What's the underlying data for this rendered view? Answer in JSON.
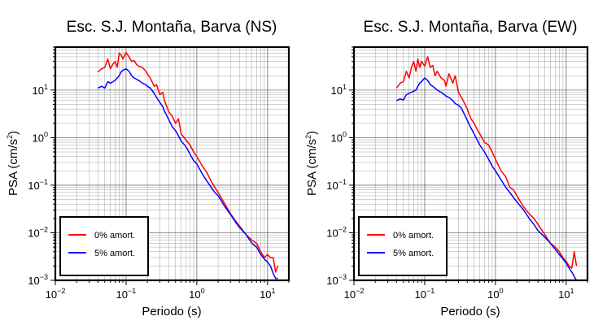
{
  "colors": {
    "series_0": "#ff0000",
    "series_5": "#0000ff",
    "grid": "#555555",
    "frame": "#000000"
  },
  "chart_data": [
    {
      "type": "line",
      "title": "Esc. S.J. Montaña, Barva (NS)",
      "xlabel": "Periodo (s)",
      "ylabel_main": "PSA (cm/s",
      "ylabel_sup": "2",
      "ylabel_tail": ")",
      "x_scale": "log",
      "y_scale": "log",
      "xlim": [
        0.01,
        20
      ],
      "ylim": [
        0.001,
        80
      ],
      "grid": true,
      "legend_position": "bottom-left",
      "x_ticks": [
        {
          "base": "10",
          "exp": "−2",
          "value": 0.01
        },
        {
          "base": "10",
          "exp": "−1",
          "value": 0.1
        },
        {
          "base": "10",
          "exp": "0",
          "value": 1
        },
        {
          "base": "10",
          "exp": "1",
          "value": 10
        }
      ],
      "y_ticks": [
        {
          "base": "10",
          "exp": "−3",
          "value": 0.001
        },
        {
          "base": "10",
          "exp": "−2",
          "value": 0.01
        },
        {
          "base": "10",
          "exp": "−1",
          "value": 0.1
        },
        {
          "base": "10",
          "exp": "0",
          "value": 1
        },
        {
          "base": "10",
          "exp": "1",
          "value": 10
        }
      ],
      "series": [
        {
          "name": "0% amort.",
          "color": "#ff0000",
          "x": [
            0.04,
            0.045,
            0.05,
            0.055,
            0.06,
            0.065,
            0.07,
            0.075,
            0.08,
            0.085,
            0.09,
            0.1,
            0.11,
            0.12,
            0.13,
            0.14,
            0.15,
            0.17,
            0.19,
            0.2,
            0.22,
            0.25,
            0.27,
            0.3,
            0.33,
            0.35,
            0.4,
            0.45,
            0.5,
            0.55,
            0.6,
            0.7,
            0.8,
            0.9,
            1.0,
            1.2,
            1.4,
            1.6,
            1.8,
            2.0,
            2.5,
            3.0,
            3.5,
            4.0,
            5.0,
            6.0,
            7.0,
            8.0,
            9.0,
            10.0,
            11.0,
            12.0,
            13.0,
            14.0
          ],
          "y": [
            24,
            28,
            30,
            45,
            28,
            35,
            40,
            30,
            60,
            55,
            45,
            62,
            50,
            40,
            42,
            35,
            32,
            30,
            25,
            22,
            18,
            12,
            13,
            8,
            9,
            6,
            3.5,
            2.8,
            2.0,
            2.5,
            1.2,
            0.9,
            0.7,
            0.5,
            0.4,
            0.25,
            0.18,
            0.12,
            0.09,
            0.07,
            0.04,
            0.025,
            0.018,
            0.014,
            0.009,
            0.007,
            0.006,
            0.004,
            0.003,
            0.0035,
            0.003,
            0.003,
            0.0015,
            0.002
          ]
        },
        {
          "name": "5% amort.",
          "color": "#0000ff",
          "x": [
            0.04,
            0.045,
            0.05,
            0.055,
            0.06,
            0.065,
            0.07,
            0.075,
            0.08,
            0.085,
            0.09,
            0.1,
            0.11,
            0.12,
            0.13,
            0.14,
            0.15,
            0.17,
            0.19,
            0.2,
            0.22,
            0.25,
            0.27,
            0.3,
            0.33,
            0.35,
            0.4,
            0.45,
            0.5,
            0.55,
            0.6,
            0.7,
            0.8,
            0.9,
            1.0,
            1.2,
            1.4,
            1.6,
            1.8,
            2.0,
            2.5,
            3.0,
            3.5,
            4.0,
            5.0,
            6.0,
            7.0,
            8.0,
            9.0,
            10.0,
            11.0,
            12.0,
            13.0,
            14.0
          ],
          "y": [
            11,
            12,
            11,
            15,
            14,
            15,
            16,
            18,
            20,
            24,
            26,
            28,
            25,
            20,
            18,
            17,
            16,
            14,
            13,
            12,
            11,
            8.5,
            7,
            5.5,
            4.5,
            3.6,
            2.4,
            1.7,
            1.4,
            1.1,
            0.85,
            0.65,
            0.45,
            0.33,
            0.28,
            0.17,
            0.12,
            0.09,
            0.07,
            0.06,
            0.035,
            0.024,
            0.017,
            0.013,
            0.009,
            0.006,
            0.005,
            0.0035,
            0.0028,
            0.0024,
            0.002,
            0.0014,
            0.0011,
            0.0011
          ]
        }
      ]
    },
    {
      "type": "line",
      "title": "Esc. S.J. Montaña, Barva (EW)",
      "xlabel": "Periodo (s)",
      "ylabel_main": "PSA (cm/s",
      "ylabel_sup": "2",
      "ylabel_tail": ")",
      "x_scale": "log",
      "y_scale": "log",
      "xlim": [
        0.01,
        20
      ],
      "ylim": [
        0.001,
        80
      ],
      "grid": true,
      "legend_position": "bottom-left",
      "x_ticks": [
        {
          "base": "10",
          "exp": "−2",
          "value": 0.01
        },
        {
          "base": "10",
          "exp": "−1",
          "value": 0.1
        },
        {
          "base": "10",
          "exp": "0",
          "value": 1
        },
        {
          "base": "10",
          "exp": "1",
          "value": 10
        }
      ],
      "y_ticks": [
        {
          "base": "10",
          "exp": "−3",
          "value": 0.001
        },
        {
          "base": "10",
          "exp": "−2",
          "value": 0.01
        },
        {
          "base": "10",
          "exp": "−1",
          "value": 0.1
        },
        {
          "base": "10",
          "exp": "0",
          "value": 1
        },
        {
          "base": "10",
          "exp": "1",
          "value": 10
        }
      ],
      "series": [
        {
          "name": "0% amort.",
          "color": "#ff0000",
          "x": [
            0.04,
            0.045,
            0.05,
            0.055,
            0.06,
            0.065,
            0.07,
            0.075,
            0.08,
            0.085,
            0.09,
            0.1,
            0.11,
            0.12,
            0.13,
            0.14,
            0.15,
            0.17,
            0.19,
            0.2,
            0.22,
            0.25,
            0.27,
            0.3,
            0.33,
            0.35,
            0.4,
            0.45,
            0.5,
            0.55,
            0.6,
            0.7,
            0.8,
            0.9,
            1.0,
            1.2,
            1.4,
            1.6,
            1.8,
            2.0,
            2.5,
            3.0,
            3.5,
            4.0,
            5.0,
            6.0,
            7.0,
            8.0,
            9.0,
            10.0,
            11.0,
            12.0,
            13.0,
            14.0
          ],
          "y": [
            11,
            14,
            15,
            25,
            18,
            30,
            40,
            25,
            45,
            30,
            40,
            32,
            50,
            30,
            33,
            20,
            25,
            18,
            16,
            12,
            22,
            14,
            20,
            9,
            7,
            6,
            4,
            2.5,
            2.0,
            1.5,
            1.2,
            0.8,
            0.7,
            0.5,
            0.35,
            0.2,
            0.15,
            0.09,
            0.08,
            0.06,
            0.035,
            0.025,
            0.02,
            0.015,
            0.009,
            0.006,
            0.005,
            0.004,
            0.003,
            0.0025,
            0.002,
            0.0018,
            0.004,
            0.002
          ]
        },
        {
          "name": "5% amort.",
          "color": "#0000ff",
          "x": [
            0.04,
            0.045,
            0.05,
            0.055,
            0.06,
            0.065,
            0.07,
            0.075,
            0.08,
            0.085,
            0.09,
            0.1,
            0.11,
            0.12,
            0.13,
            0.14,
            0.15,
            0.17,
            0.19,
            0.2,
            0.22,
            0.25,
            0.27,
            0.3,
            0.33,
            0.35,
            0.4,
            0.45,
            0.5,
            0.55,
            0.6,
            0.7,
            0.8,
            0.9,
            1.0,
            1.2,
            1.4,
            1.6,
            1.8,
            2.0,
            2.5,
            3.0,
            3.5,
            4.0,
            5.0,
            6.0,
            7.0,
            8.0,
            9.0,
            10.0,
            11.0,
            12.0,
            13.0,
            14.0
          ],
          "y": [
            6,
            6.5,
            6.2,
            8,
            8.5,
            9,
            9.5,
            10,
            12,
            14,
            15,
            18,
            16,
            13,
            12,
            11,
            10,
            9,
            8,
            7.5,
            7,
            6,
            5.2,
            4.8,
            4.2,
            3.5,
            2.3,
            1.6,
            1.2,
            0.9,
            0.7,
            0.5,
            0.35,
            0.25,
            0.2,
            0.13,
            0.09,
            0.07,
            0.055,
            0.045,
            0.03,
            0.02,
            0.015,
            0.011,
            0.008,
            0.006,
            0.0045,
            0.0035,
            0.0028,
            0.0023,
            0.0018,
            0.0015,
            0.0012,
            0.001
          ]
        }
      ]
    }
  ]
}
